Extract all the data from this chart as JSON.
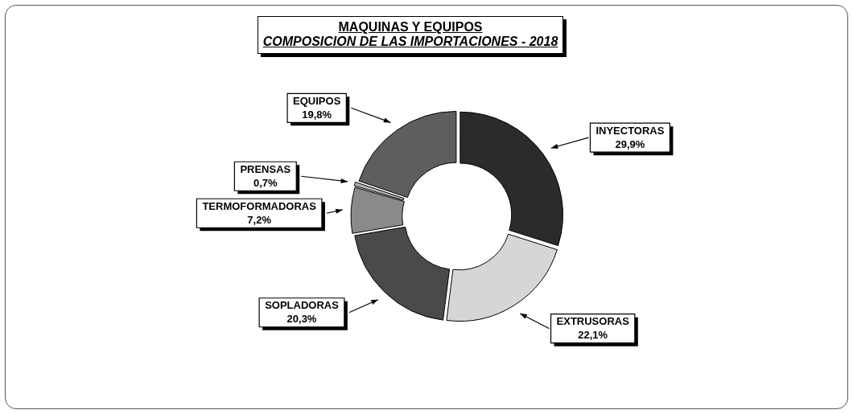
{
  "chart_data": {
    "type": "donut",
    "title": "MAQUINAS Y EQUIPOS",
    "subtitle": "COMPOSICION DE LAS IMPORTACIONES   - 2018",
    "categories": [
      "INYECTORAS",
      "EXTRUSORAS",
      "SOPLADORAS",
      "TERMOFORMADORAS",
      "PRENSAS",
      "EQUIPOS"
    ],
    "values": [
      29.9,
      22.1,
      20.3,
      7.2,
      0.7,
      19.8
    ],
    "value_labels": [
      "29,9%",
      "22,1%",
      "20,3%",
      "7,2%",
      "0,7%",
      "19,8%"
    ],
    "colors": [
      "#2b2b2b",
      "#d6d6d6",
      "#4a4a4a",
      "#8a8a8a",
      "#b0b0b0",
      "#5e5e5e"
    ],
    "legend": false
  }
}
